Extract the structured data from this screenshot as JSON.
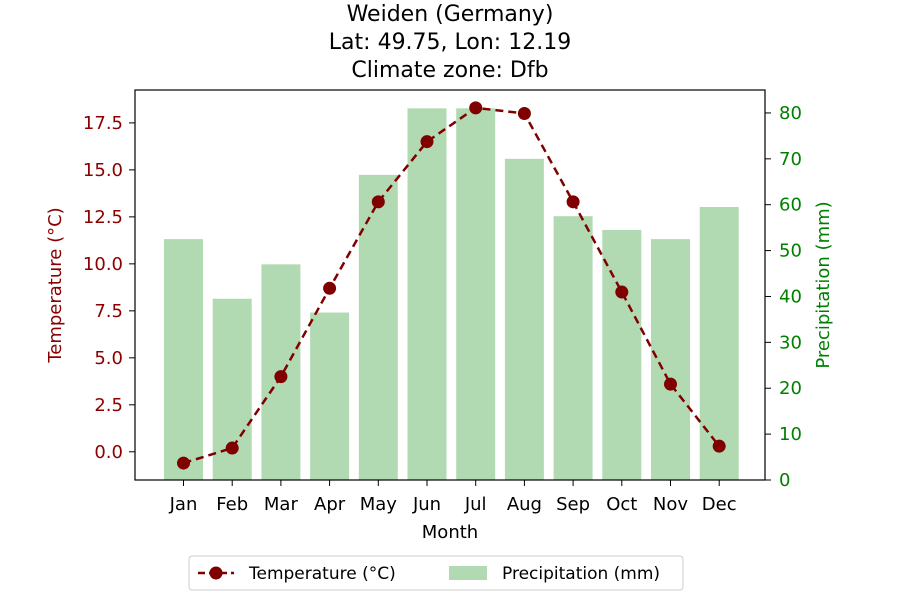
{
  "chart_data": {
    "type": "bar",
    "title_lines": [
      "Weiden (Germany)",
      "Lat: 49.75, Lon: 12.19",
      "Climate zone: Dfb"
    ],
    "xlabel": "Month",
    "categories": [
      "Jan",
      "Feb",
      "Mar",
      "Apr",
      "May",
      "Jun",
      "Jul",
      "Aug",
      "Sep",
      "Oct",
      "Nov",
      "Dec"
    ],
    "y_left": {
      "label": "Temperature (°C)",
      "color": "#8b0000",
      "ylim": [
        -1.5,
        19.25
      ],
      "ticks": [
        0.0,
        2.5,
        5.0,
        7.5,
        10.0,
        12.5,
        15.0,
        17.5
      ],
      "tick_labels": [
        "0.0",
        "2.5",
        "5.0",
        "7.5",
        "10.0",
        "12.5",
        "15.0",
        "17.5"
      ]
    },
    "y_right": {
      "label": "Precipitation (mm)",
      "color": "#008000",
      "ylim": [
        0,
        85
      ],
      "ticks": [
        0,
        10,
        20,
        30,
        40,
        50,
        60,
        70,
        80
      ],
      "tick_labels": [
        "0",
        "10",
        "20",
        "30",
        "40",
        "50",
        "60",
        "70",
        "80"
      ]
    },
    "series": [
      {
        "name": "Temperature (°C)",
        "type": "line",
        "axis": "left",
        "color": "#800000",
        "line_style": "dashed",
        "marker": "circle",
        "values": [
          -0.6,
          0.2,
          4.0,
          8.7,
          13.3,
          16.5,
          18.3,
          18.0,
          13.3,
          8.5,
          3.6,
          0.3
        ]
      },
      {
        "name": "Precipitation (mm)",
        "type": "bar",
        "axis": "right",
        "color": "#b2dab2",
        "values": [
          52.5,
          39.5,
          47,
          36.5,
          66.5,
          81,
          81,
          70,
          57.5,
          54.5,
          52.5,
          59.5
        ]
      }
    ],
    "legend": {
      "placement": "bottom-center",
      "entries": [
        "Temperature (°C)",
        "Precipitation (mm)"
      ]
    },
    "grid": false
  }
}
